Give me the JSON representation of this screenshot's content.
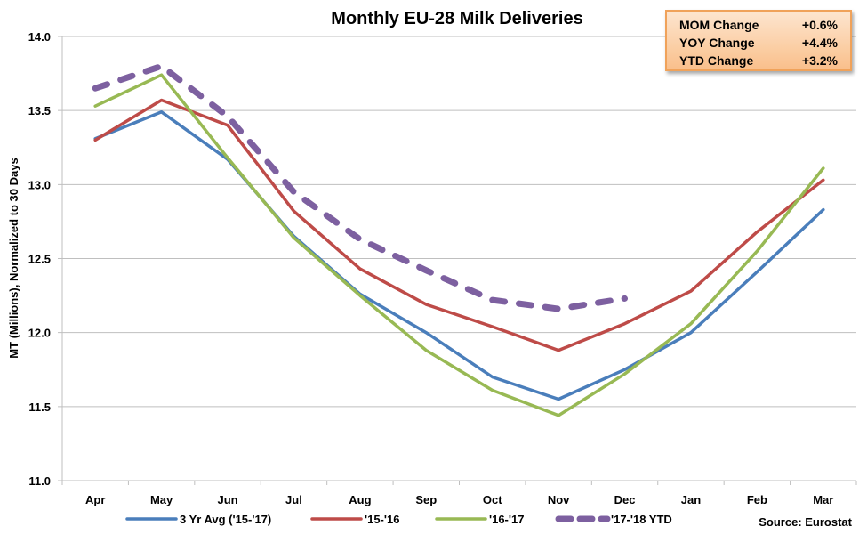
{
  "chart_data": {
    "type": "line",
    "title": "Monthly EU-28 Milk Deliveries",
    "xlabel": "",
    "ylabel": "MT (Millions), Normalized to 30 Days",
    "ylim": [
      11.0,
      14.0
    ],
    "yticks": [
      11.0,
      11.5,
      12.0,
      12.5,
      13.0,
      13.5,
      14.0
    ],
    "ytick_labels": [
      "11.0",
      "11.5",
      "12.0",
      "12.5",
      "13.0",
      "13.5",
      "14.0"
    ],
    "grid": true,
    "legend_position": "bottom",
    "categories": [
      "Apr",
      "May",
      "Jun",
      "Jul",
      "Aug",
      "Sep",
      "Oct",
      "Nov",
      "Dec",
      "Jan",
      "Feb",
      "Mar"
    ],
    "series": [
      {
        "name": "3 Yr Avg ('15-'17)",
        "color": "#4a7ebb",
        "dashed": false,
        "values": [
          13.31,
          13.49,
          13.17,
          12.65,
          12.26,
          12.0,
          11.7,
          11.55,
          11.75,
          12.0,
          12.41,
          12.83
        ]
      },
      {
        "name": "'15-'16",
        "color": "#be4b48",
        "dashed": false,
        "values": [
          13.3,
          13.57,
          13.4,
          12.82,
          12.43,
          12.19,
          12.04,
          11.88,
          12.06,
          12.28,
          12.68,
          13.03
        ]
      },
      {
        "name": "'16-'17",
        "color": "#98b954",
        "dashed": false,
        "values": [
          13.53,
          13.74,
          13.18,
          12.64,
          12.25,
          11.88,
          11.61,
          11.44,
          11.72,
          12.06,
          12.55,
          13.11
        ]
      },
      {
        "name": "'17-'18 YTD",
        "color": "#7d60a0",
        "dashed": true,
        "values": [
          13.65,
          13.8,
          13.46,
          12.95,
          12.63,
          12.42,
          12.22,
          12.16,
          12.23,
          null,
          null,
          null
        ]
      }
    ],
    "annotations": [
      "Source: Eurostat"
    ]
  },
  "infobox": {
    "rows": [
      {
        "label": "MOM Change",
        "value": "+0.6%"
      },
      {
        "label": "YOY Change",
        "value": "+4.4%"
      },
      {
        "label": "YTD Change",
        "value": "+3.2%"
      }
    ]
  },
  "source": "Source: Eurostat"
}
